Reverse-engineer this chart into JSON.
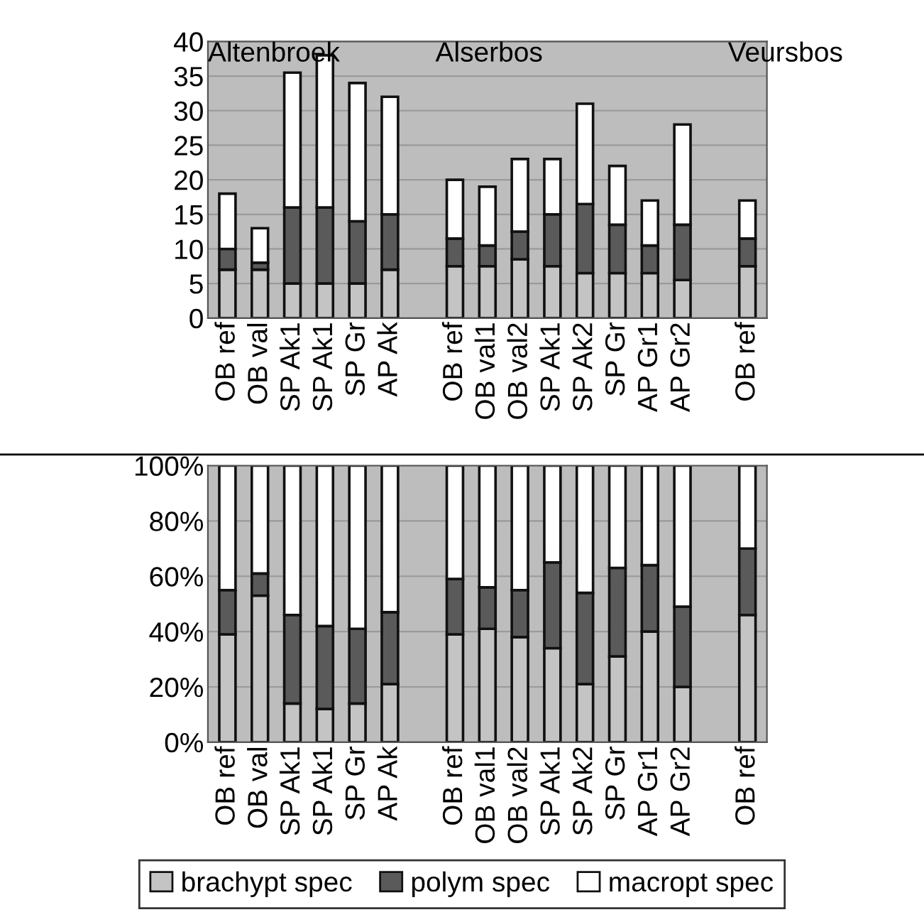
{
  "chart_data": [
    {
      "type": "bar",
      "stacked": true,
      "grid": "y",
      "legend": false,
      "categories": [
        "OB ref",
        "OB val",
        "SP Ak1",
        "SP Ak1",
        "SP Gr",
        "AP Ak",
        null,
        "OB ref",
        "OB val1",
        "OB val2",
        "SP Ak1",
        "SP Ak2",
        "SP Gr",
        "AP Gr1",
        "AP Gr2",
        null,
        "OB ref"
      ],
      "annotations": [
        "Altenbroek",
        "Alserbos",
        "Veursbos"
      ],
      "ylim": [
        0,
        40
      ],
      "yticks": [
        0,
        5,
        10,
        15,
        20,
        25,
        30,
        35,
        40
      ],
      "series": [
        {
          "color": "#c4c4c4",
          "values": [
            7,
            7,
            5,
            5,
            5,
            7,
            null,
            7.5,
            7.5,
            8.5,
            7.5,
            6.5,
            6.5,
            6.5,
            5.5,
            null,
            7.5
          ]
        },
        {
          "color": "#5a5a5a",
          "values": [
            3,
            1,
            11,
            11,
            9,
            8,
            null,
            4,
            3,
            4,
            7.5,
            10,
            7,
            4,
            8,
            null,
            4
          ]
        },
        {
          "color": "#ffffff",
          "values": [
            8,
            5,
            19.5,
            22,
            20,
            17,
            null,
            8.5,
            8.5,
            10.5,
            8,
            14.5,
            8.5,
            6.5,
            14.5,
            null,
            5.5
          ]
        }
      ]
    },
    {
      "type": "bar",
      "stacked": true,
      "grid": "y",
      "legend": "bottom",
      "categories": [
        "OB ref",
        "OB val",
        "SP Ak1",
        "SP Ak1",
        "SP Gr",
        "AP Ak",
        null,
        "OB ref",
        "OB val1",
        "OB val2",
        "SP Ak1",
        "SP Ak2",
        "SP Gr",
        "AP Gr1",
        "AP Gr2",
        null,
        "OB ref"
      ],
      "ylim": [
        0,
        100
      ],
      "yticks": [
        {
          "value": 0,
          "label": "0%"
        },
        {
          "value": 20,
          "label": "20%"
        },
        {
          "value": 40,
          "label": "40%"
        },
        {
          "value": 60,
          "label": "60%"
        },
        {
          "value": 80,
          "label": "80%"
        },
        {
          "value": 100,
          "label": "100%"
        }
      ],
      "series": [
        {
          "name": "brachypt spec",
          "color": "#c4c4c4",
          "values": [
            39,
            53,
            14,
            12,
            14,
            21,
            null,
            39,
            41,
            38,
            34,
            21,
            31,
            40,
            20,
            null,
            46
          ]
        },
        {
          "name": "polym spec",
          "color": "#5a5a5a",
          "values": [
            16,
            8,
            32,
            30,
            27,
            26,
            null,
            20,
            15,
            17,
            31,
            33,
            32,
            24,
            29,
            null,
            24
          ]
        },
        {
          "name": "macropt spec",
          "color": "#ffffff",
          "values": [
            45,
            39,
            54,
            58,
            59,
            53,
            null,
            41,
            44,
            45,
            35,
            46,
            37,
            36,
            51,
            null,
            30
          ]
        }
      ]
    }
  ]
}
